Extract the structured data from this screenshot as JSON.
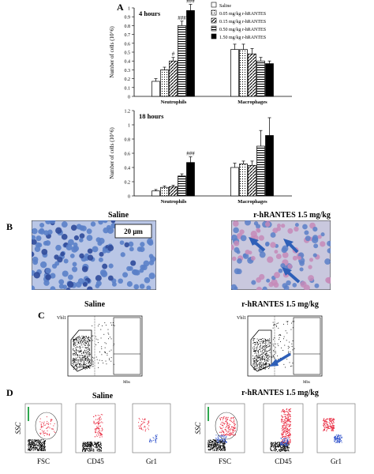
{
  "panels": {
    "A": "A",
    "B": "B",
    "C": "C",
    "D": "D"
  },
  "legend": [
    "Saline",
    "0.05 mg/kg r-hRANTES",
    "0.15 mg/kg r-hRANTES",
    "0.50 mg/kg r-hRANTES",
    "1.50 mg/kg r-hRANTES"
  ],
  "chart_data": [
    {
      "type": "bar",
      "title": "4 hours",
      "categories": [
        "Neutrophils",
        "Macrophages"
      ],
      "ylabel": "Number of cells (10^6)",
      "ylim": [
        0,
        1.0
      ],
      "yticks": [
        "0",
        "0.1",
        "0.2",
        "0.3",
        "0.4",
        "0.5",
        "0.6",
        "0.7",
        "0.8",
        "0.9",
        "1"
      ],
      "series": [
        {
          "name": "Saline",
          "values": [
            0.17,
            0.53
          ],
          "errors": [
            0.03,
            0.06
          ]
        },
        {
          "name": "0.05 mg/kg r-hRANTES",
          "values": [
            0.3,
            0.53
          ],
          "errors": [
            0.03,
            0.06
          ]
        },
        {
          "name": "0.15 mg/kg r-hRANTES",
          "values": [
            0.4,
            0.48
          ],
          "errors": [
            0.04,
            0.06
          ]
        },
        {
          "name": "0.50 mg/kg r-hRANTES",
          "values": [
            0.8,
            0.4
          ],
          "errors": [
            0.05,
            0.04
          ]
        },
        {
          "name": "1.50 mg/kg r-hRANTES",
          "values": [
            0.97,
            0.37
          ],
          "errors": [
            0.07,
            0.03
          ]
        }
      ],
      "annotations": [
        "#",
        "###",
        "###"
      ]
    },
    {
      "type": "bar",
      "title": "18 hours",
      "categories": [
        "Neutrophils",
        "Macrophages"
      ],
      "ylabel": "Number of cells (10^6)",
      "ylim": [
        0,
        1.2
      ],
      "yticks": [
        "0",
        "0.2",
        "0.4",
        "0.6",
        "0.8",
        "1",
        "1.2"
      ],
      "series": [
        {
          "name": "Saline",
          "values": [
            0.07,
            0.4
          ],
          "errors": [
            0.02,
            0.06
          ]
        },
        {
          "name": "0.05 mg/kg r-hRANTES",
          "values": [
            0.12,
            0.45
          ],
          "errors": [
            0.02,
            0.04
          ]
        },
        {
          "name": "0.15 mg/kg r-hRANTES",
          "values": [
            0.13,
            0.43
          ],
          "errors": [
            0.02,
            0.06
          ]
        },
        {
          "name": "0.50 mg/kg r-hRANTES",
          "values": [
            0.28,
            0.7
          ],
          "errors": [
            0.03,
            0.22
          ]
        },
        {
          "name": "1.50 mg/kg r-hRANTES",
          "values": [
            0.47,
            0.85
          ],
          "errors": [
            0.08,
            0.25
          ]
        }
      ],
      "annotations": [
        "###"
      ]
    }
  ],
  "panelB": {
    "left_title": "Saline",
    "right_title": "r-hRANTES 1.5 mg/kg",
    "scale": "20 μm"
  },
  "panelC": {
    "left_title": "Saline",
    "right_title": "r-hRANTES 1.5 mg/kg",
    "ylabel": "Vbl1",
    "xlabel": "Mbs"
  },
  "panelD": {
    "left_title": "Saline",
    "right_title": "r-hRANTES 1.5 mg/kg",
    "axes": [
      "SSC",
      "FSC",
      "CD45",
      "Gr1"
    ]
  },
  "colors": {
    "stain_blue": "#5a7fc8",
    "stain_dark": "#2f4a9a",
    "stain_pink": "#c58ab8",
    "arrow": "#2e5fb8",
    "red_pop": "#e8233a",
    "blue_pop": "#3355cc"
  }
}
